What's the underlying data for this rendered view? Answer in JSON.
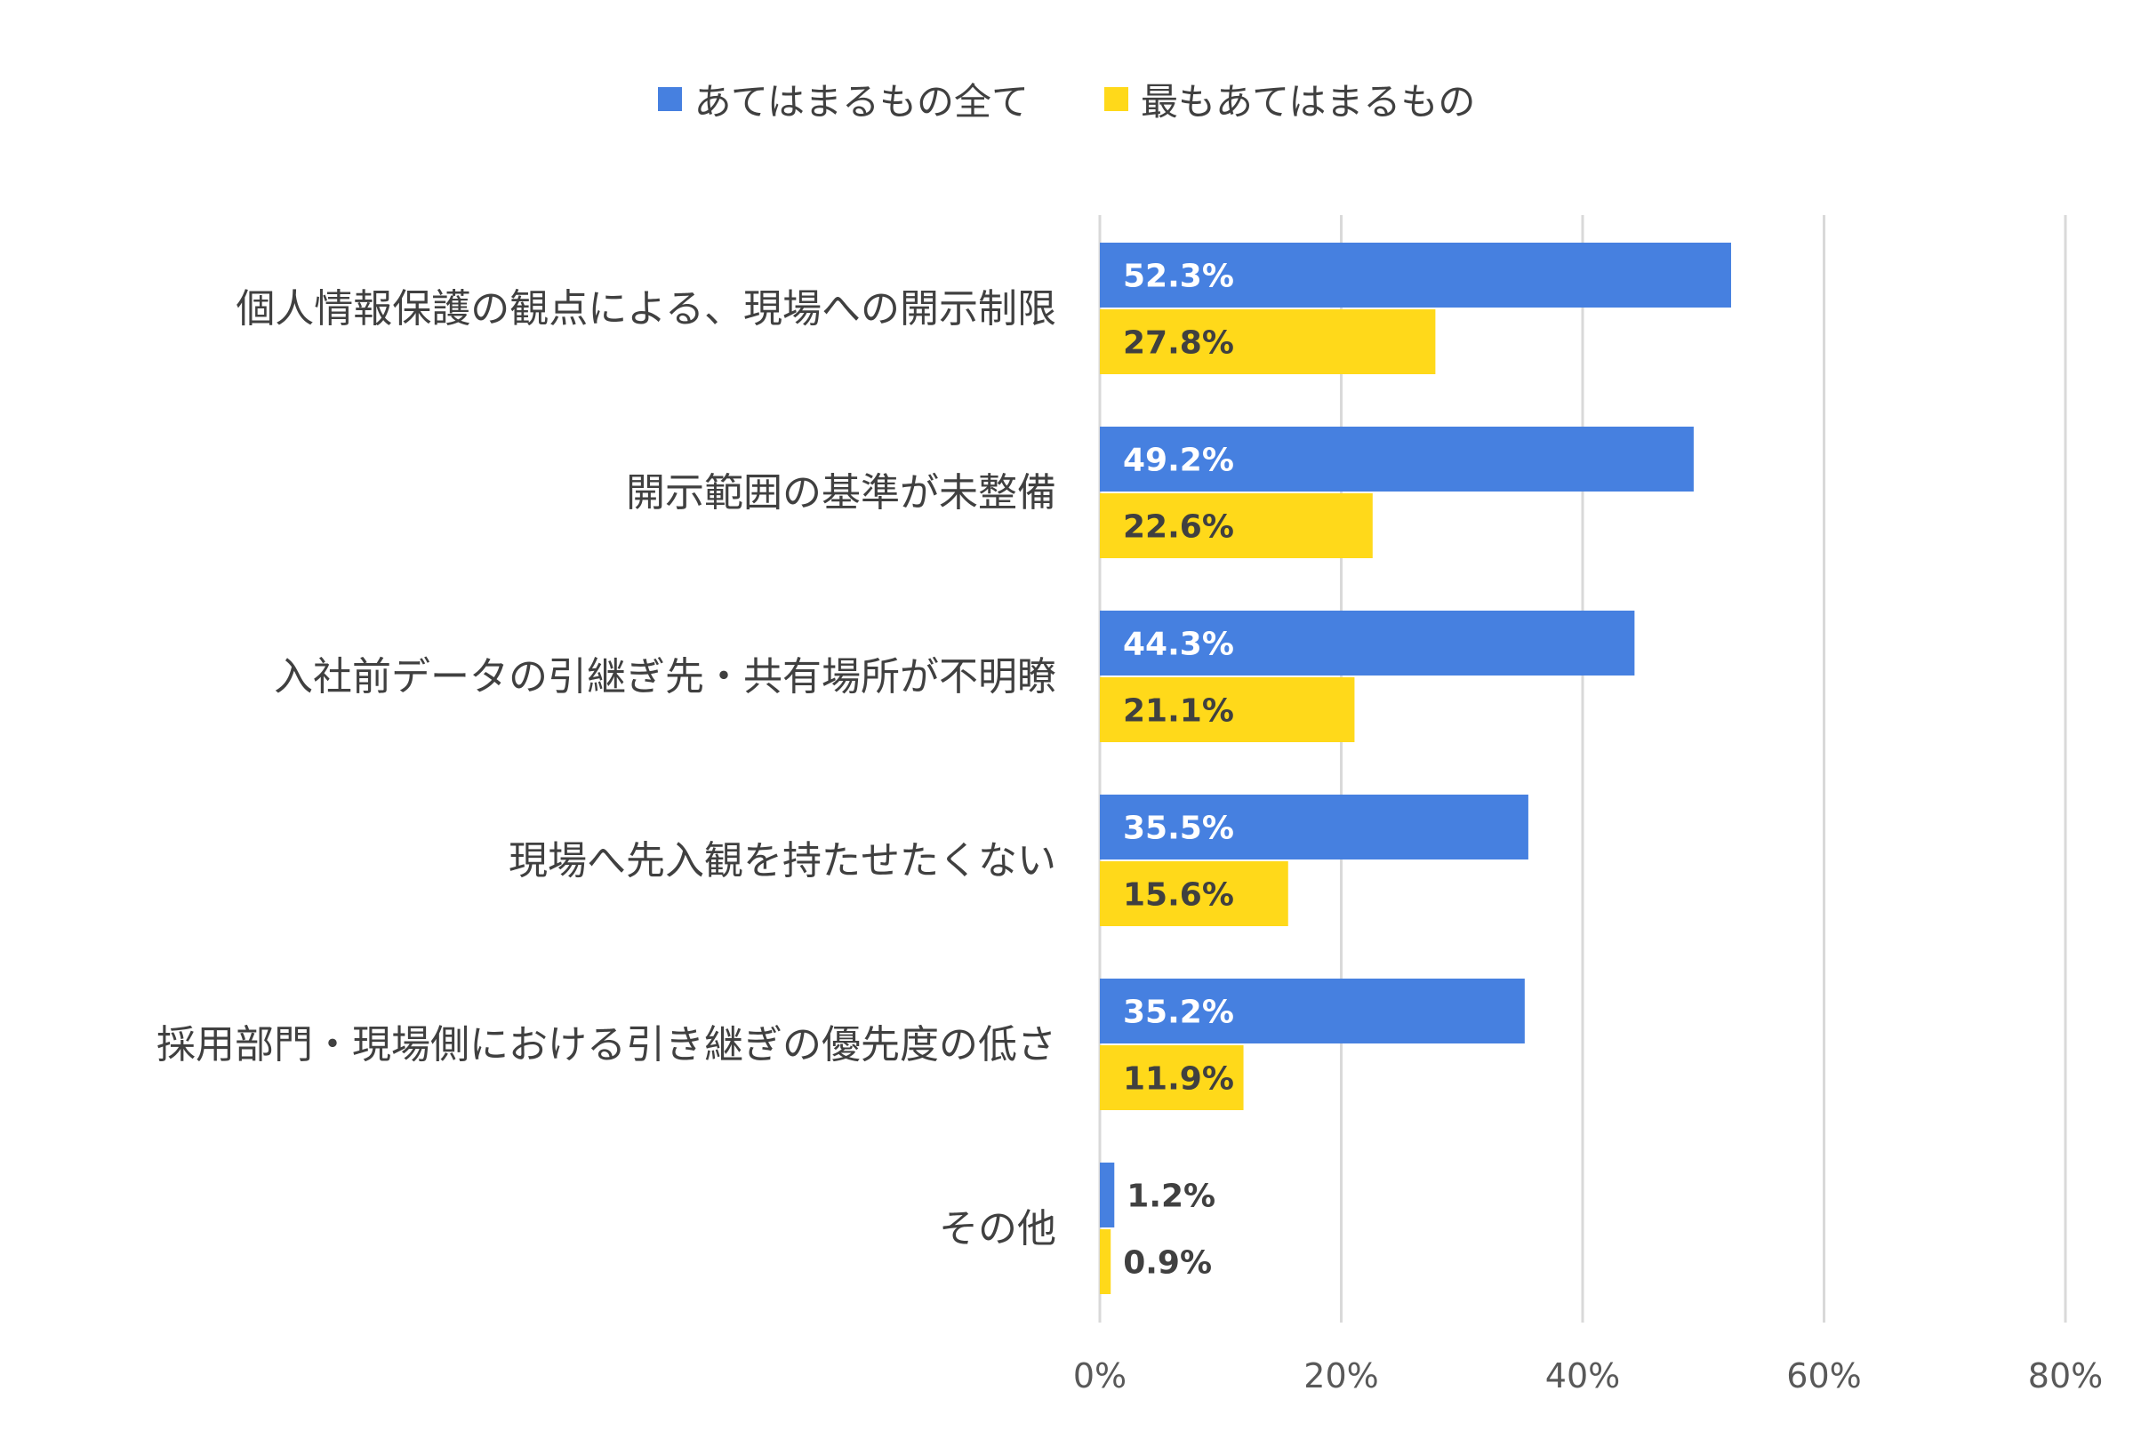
{
  "chart_data": {
    "type": "bar",
    "orientation": "horizontal",
    "categories": [
      "個人情報保護の観点による、現場への開示制限",
      "開示範囲の基準が未整備",
      "入社前データの引継ぎ先・共有場所が不明瞭",
      "現場へ先入観を持たせたくない",
      "採用部門・現場側における引き継ぎの優先度の低さ",
      "その他"
    ],
    "series": [
      {
        "name": "あてはまるもの全て",
        "color": "#4680E0",
        "values": [
          52.3,
          49.2,
          44.3,
          35.5,
          35.2,
          1.2
        ],
        "labels": [
          "52.3%",
          "49.2%",
          "44.3%",
          "35.5%",
          "35.2%",
          "1.2%"
        ]
      },
      {
        "name": "最もあてはまるもの",
        "color": "#FFD91A",
        "values": [
          27.8,
          22.6,
          21.1,
          15.6,
          11.9,
          0.9
        ],
        "labels": [
          "27.8%",
          "22.6%",
          "21.1%",
          "15.6%",
          "11.9%",
          "0.9%"
        ]
      }
    ],
    "xlim": [
      0,
      80
    ],
    "xticks": [
      0,
      20,
      40,
      60,
      80
    ],
    "xtick_labels": [
      "0%",
      "20%",
      "40%",
      "60%",
      "80%"
    ],
    "grid": true,
    "legend_position": "top-center"
  }
}
